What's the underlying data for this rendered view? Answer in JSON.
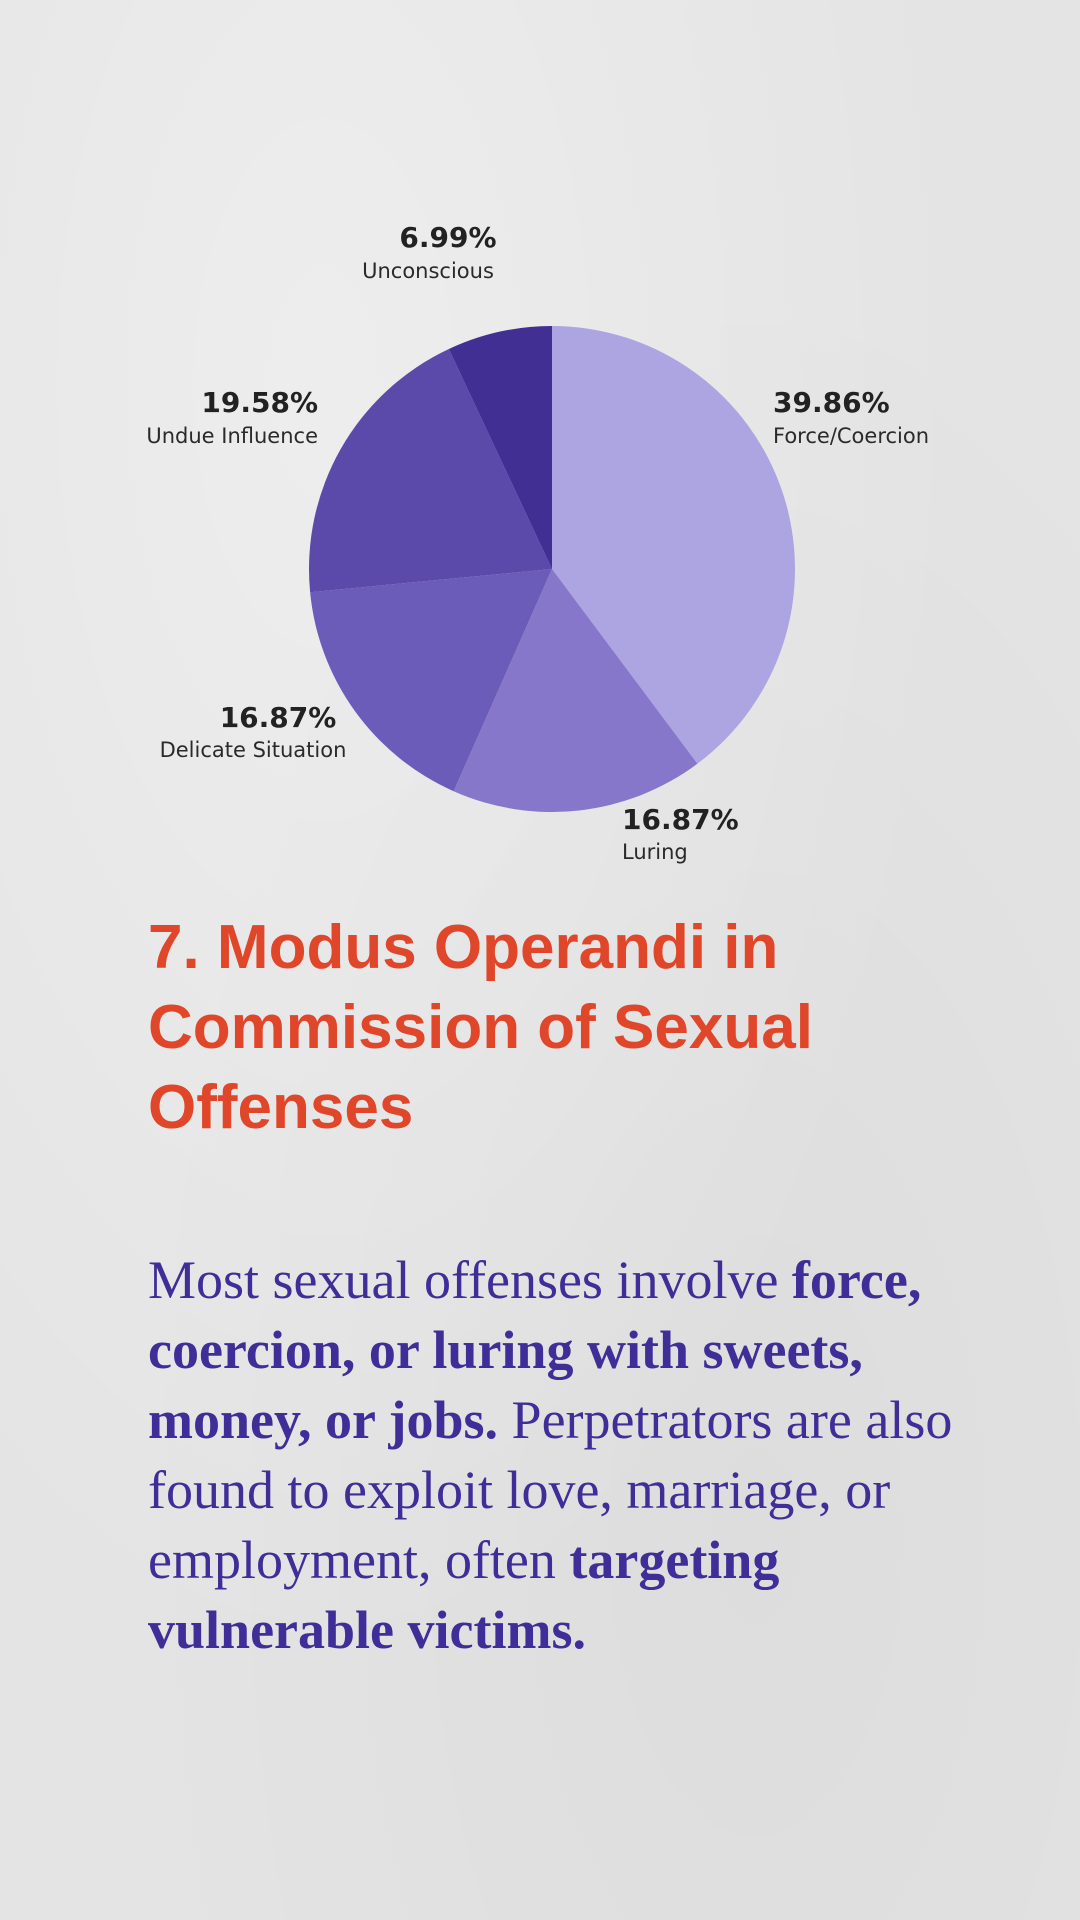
{
  "colors": {
    "background": "#e4e4e4",
    "heading": "#e0472a",
    "body_text": "#3f2e98",
    "labels": "#222222"
  },
  "chart_data": {
    "type": "pie",
    "slices": [
      {
        "category": "Force/Coercion",
        "value": 39.86,
        "label": "39.86%",
        "color": "#ada5e2"
      },
      {
        "category": "Luring",
        "value": 16.87,
        "label": "16.87%",
        "color": "#8677cb"
      },
      {
        "category": "Delicate Situation",
        "value": 16.87,
        "label": "16.87%",
        "color": "#6c5cb9"
      },
      {
        "category": "Undue Influence",
        "value": 19.58,
        "label": "19.58%",
        "color": "#5c4aaa"
      },
      {
        "category": "Unconscious",
        "value": 6.99,
        "label": "6.99%",
        "color": "#412f94"
      }
    ],
    "start": "12 o'clock",
    "direction": "clockwise"
  },
  "heading": "7. Modus Operandi in Commission of  Sexual Offenses",
  "body": {
    "p1": "Most sexual offenses involve ",
    "b1": "force, coercion, or luring with sweets, money, or jobs.",
    "p2": " Perpetrators are also found to exploit love, marriage, or employment, often ",
    "b2": "targeting vulnerable victims."
  }
}
